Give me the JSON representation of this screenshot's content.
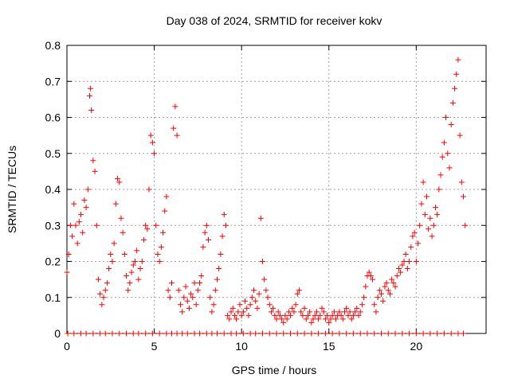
{
  "colors": {
    "series": "#ff0000",
    "grid": "#a0a0a0",
    "axis": "#000000"
  },
  "chart_data": {
    "type": "scatter",
    "title": "Day 038 of 2024, SRMTID for receiver kokv",
    "xlabel": "GPS time / hours",
    "ylabel": "SRMTID / TECUs",
    "xlim": [
      0,
      24
    ],
    "ylim": [
      0,
      0.8
    ],
    "xticks": [
      0,
      5,
      10,
      15,
      20
    ],
    "yticks": [
      0,
      0.1,
      0.2,
      0.3,
      0.4,
      0.5,
      0.6,
      0.7,
      0.8
    ],
    "grid": true,
    "marker": "+",
    "series": [
      {
        "name": "SRMTID",
        "x": [
          0.0,
          0.1,
          0.2,
          0.3,
          0.4,
          0.5,
          0.6,
          0.7,
          0.8,
          0.9,
          1.0,
          1.1,
          1.2,
          1.3,
          1.35,
          1.4,
          1.5,
          1.6,
          1.7,
          1.8,
          1.9,
          2.0,
          2.1,
          2.2,
          2.3,
          2.4,
          2.5,
          2.6,
          2.7,
          2.8,
          2.9,
          3.0,
          3.1,
          3.2,
          3.3,
          3.4,
          3.5,
          3.6,
          3.7,
          3.8,
          3.9,
          4.0,
          4.1,
          4.2,
          4.3,
          4.4,
          4.5,
          4.6,
          4.7,
          4.8,
          4.9,
          5.0,
          5.1,
          5.2,
          5.3,
          5.4,
          5.5,
          5.6,
          5.7,
          5.8,
          5.9,
          6.0,
          6.1,
          6.2,
          6.3,
          6.4,
          6.5,
          6.6,
          6.7,
          6.8,
          6.9,
          7.0,
          7.1,
          7.2,
          7.3,
          7.4,
          7.5,
          7.6,
          7.7,
          7.8,
          7.9,
          8.0,
          8.1,
          8.2,
          8.3,
          8.4,
          8.5,
          8.6,
          8.7,
          8.8,
          8.9,
          9.0,
          9.1,
          9.2,
          9.3,
          9.4,
          9.5,
          9.6,
          9.7,
          9.8,
          9.9,
          10.0,
          10.1,
          10.2,
          10.3,
          10.4,
          10.5,
          10.6,
          10.7,
          10.8,
          10.9,
          11.0,
          11.1,
          11.2,
          11.3,
          11.4,
          11.5,
          11.6,
          11.7,
          11.8,
          11.9,
          12.0,
          12.1,
          12.2,
          12.3,
          12.4,
          12.5,
          12.6,
          12.7,
          12.8,
          12.9,
          13.0,
          13.1,
          13.2,
          13.3,
          13.4,
          13.5,
          13.6,
          13.7,
          13.8,
          13.9,
          14.0,
          14.1,
          14.2,
          14.3,
          14.4,
          14.5,
          14.6,
          14.7,
          14.8,
          14.9,
          15.0,
          15.1,
          15.2,
          15.3,
          15.4,
          15.5,
          15.6,
          15.7,
          15.8,
          15.9,
          16.0,
          16.1,
          16.2,
          16.3,
          16.4,
          16.5,
          16.6,
          16.7,
          16.8,
          16.9,
          17.0,
          17.1,
          17.2,
          17.3,
          17.4,
          17.5,
          17.6,
          17.7,
          17.8,
          17.9,
          18.0,
          18.1,
          18.2,
          18.3,
          18.4,
          18.5,
          18.6,
          18.7,
          18.8,
          18.9,
          19.0,
          19.1,
          19.2,
          19.3,
          19.4,
          19.5,
          19.6,
          19.7,
          19.8,
          19.9,
          20.0,
          20.1,
          20.2,
          20.3,
          20.4,
          20.5,
          20.6,
          20.7,
          20.8,
          20.9,
          21.0,
          21.1,
          21.2,
          21.3,
          21.4,
          21.5,
          21.6,
          21.7,
          21.8,
          21.9,
          22.0,
          22.1,
          22.2,
          22.3,
          22.4,
          22.5,
          22.6,
          22.7,
          22.8
        ],
        "y": [
          0.17,
          0.22,
          0.3,
          0.27,
          0.36,
          0.3,
          0.25,
          0.31,
          0.33,
          0.28,
          0.37,
          0.35,
          0.4,
          0.66,
          0.68,
          0.62,
          0.48,
          0.45,
          0.3,
          0.15,
          0.11,
          0.08,
          0.1,
          0.12,
          0.14,
          0.18,
          0.22,
          0.2,
          0.25,
          0.36,
          0.43,
          0.42,
          0.32,
          0.28,
          0.22,
          0.16,
          0.12,
          0.14,
          0.17,
          0.19,
          0.2,
          0.23,
          0.15,
          0.18,
          0.2,
          0.26,
          0.3,
          0.29,
          0.4,
          0.55,
          0.53,
          0.5,
          0.3,
          0.22,
          0.2,
          0.24,
          0.28,
          0.34,
          0.38,
          0.12,
          0.1,
          0.14,
          0.57,
          0.63,
          0.55,
          0.12,
          0.08,
          0.06,
          0.1,
          0.13,
          0.09,
          0.07,
          0.11,
          0.1,
          0.14,
          0.08,
          0.12,
          0.14,
          0.16,
          0.24,
          0.28,
          0.3,
          0.26,
          0.1,
          0.06,
          0.08,
          0.12,
          0.15,
          0.18,
          0.22,
          0.27,
          0.33,
          0.3,
          0.05,
          0.04,
          0.06,
          0.07,
          0.05,
          0.04,
          0.06,
          0.08,
          0.05,
          0.06,
          0.09,
          0.07,
          0.05,
          0.08,
          0.1,
          0.12,
          0.09,
          0.07,
          0.11,
          0.32,
          0.2,
          0.15,
          0.12,
          0.1,
          0.08,
          0.06,
          0.07,
          0.05,
          0.04,
          0.06,
          0.05,
          0.04,
          0.03,
          0.05,
          0.04,
          0.06,
          0.05,
          0.07,
          0.06,
          0.08,
          0.11,
          0.12,
          0.06,
          0.05,
          0.07,
          0.04,
          0.05,
          0.06,
          0.03,
          0.04,
          0.05,
          0.06,
          0.04,
          0.05,
          0.07,
          0.06,
          0.04,
          0.05,
          0.03,
          0.04,
          0.05,
          0.06,
          0.04,
          0.05,
          0.06,
          0.05,
          0.04,
          0.06,
          0.07,
          0.05,
          0.06,
          0.04,
          0.05,
          0.06,
          0.07,
          0.05,
          0.06,
          0.08,
          0.1,
          0.13,
          0.16,
          0.17,
          0.16,
          0.15,
          0.08,
          0.06,
          0.1,
          0.12,
          0.11,
          0.09,
          0.13,
          0.14,
          0.12,
          0.11,
          0.15,
          0.14,
          0.13,
          0.16,
          0.18,
          0.17,
          0.19,
          0.2,
          0.22,
          0.18,
          0.2,
          0.24,
          0.27,
          0.28,
          0.2,
          0.25,
          0.3,
          0.36,
          0.42,
          0.33,
          0.38,
          0.29,
          0.32,
          0.27,
          0.3,
          0.35,
          0.33,
          0.4,
          0.44,
          0.49,
          0.53,
          0.6,
          0.5,
          0.46,
          0.58,
          0.64,
          0.68,
          0.72,
          0.76,
          0.55,
          0.42,
          0.38,
          0.3
        ],
        "zero_markers_x": [
          0.05,
          0.4,
          0.8,
          1.1,
          1.5,
          1.9,
          2.2,
          2.6,
          3.0,
          3.4,
          3.8,
          4.1,
          4.5,
          4.9,
          5.3,
          5.7,
          6.0,
          6.3,
          6.6,
          6.9,
          7.3,
          7.6,
          8.0,
          8.3,
          8.6,
          9.0,
          9.4,
          9.7,
          10.1,
          10.5,
          10.8,
          11.2,
          11.6,
          12.0,
          12.4,
          12.8,
          13.2,
          13.6,
          14.0,
          14.4,
          14.8,
          15.2,
          15.6,
          16.0,
          16.4,
          16.8,
          17.2,
          17.6,
          18.0,
          18.4,
          18.8,
          19.2,
          19.6,
          20.0,
          20.4,
          20.8,
          21.2,
          21.6,
          22.0,
          22.4,
          22.7
        ]
      }
    ]
  }
}
